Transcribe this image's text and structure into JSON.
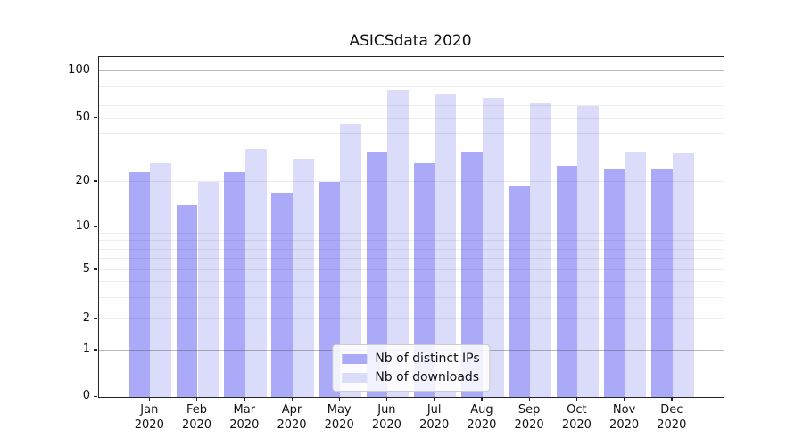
{
  "chart_data": {
    "type": "bar",
    "title": "ASICSdata 2020",
    "categories": [
      "Jan 2020",
      "Feb 2020",
      "Mar 2020",
      "Apr 2020",
      "May 2020",
      "Jun 2020",
      "Jul 2020",
      "Aug 2020",
      "Sep 2020",
      "Oct 2020",
      "Nov 2020",
      "Dec 2020"
    ],
    "x_tick_months": [
      "Jan",
      "Feb",
      "Mar",
      "Apr",
      "May",
      "Jun",
      "Jul",
      "Aug",
      "Sep",
      "Oct",
      "Nov",
      "Dec"
    ],
    "x_tick_year": "2020",
    "series": [
      {
        "name": "Nb of distinct IPs",
        "color": "#aaaaf8",
        "values": [
          23,
          14,
          23,
          17,
          20,
          31,
          26,
          31,
          19,
          25,
          24,
          24
        ]
      },
      {
        "name": "Nb of downloads",
        "color": "#dbdbfa",
        "values": [
          26,
          20,
          32,
          28,
          46,
          76,
          72,
          67,
          62,
          60,
          31,
          30
        ]
      }
    ],
    "yscale": "symlog",
    "ylim": [
      0,
      122
    ],
    "y_ticks": [
      {
        "value": 0,
        "label": "0"
      },
      {
        "value": 1,
        "label": "1"
      },
      {
        "value": 2,
        "label": "2"
      },
      {
        "value": 5,
        "label": "5"
      },
      {
        "value": 10,
        "label": "10"
      },
      {
        "value": 20,
        "label": "20"
      },
      {
        "value": 50,
        "label": "50"
      },
      {
        "value": 100,
        "label": "100"
      }
    ],
    "grid": "both",
    "grid_major_values": [
      1,
      10,
      100
    ],
    "grid_minor_values": [
      2,
      3,
      4,
      5,
      6,
      7,
      8,
      9,
      20,
      30,
      40,
      50,
      60,
      70,
      80,
      90
    ],
    "legend": {
      "position": "lower center",
      "entries": [
        "Nb of distinct IPs",
        "Nb of downloads"
      ]
    }
  },
  "colors": {
    "series_ips": "#aaaaf8",
    "series_downloads": "#dbdbfa",
    "spine": "#262626",
    "text": "#1a1a1a",
    "legend_border": "#cccccc"
  }
}
